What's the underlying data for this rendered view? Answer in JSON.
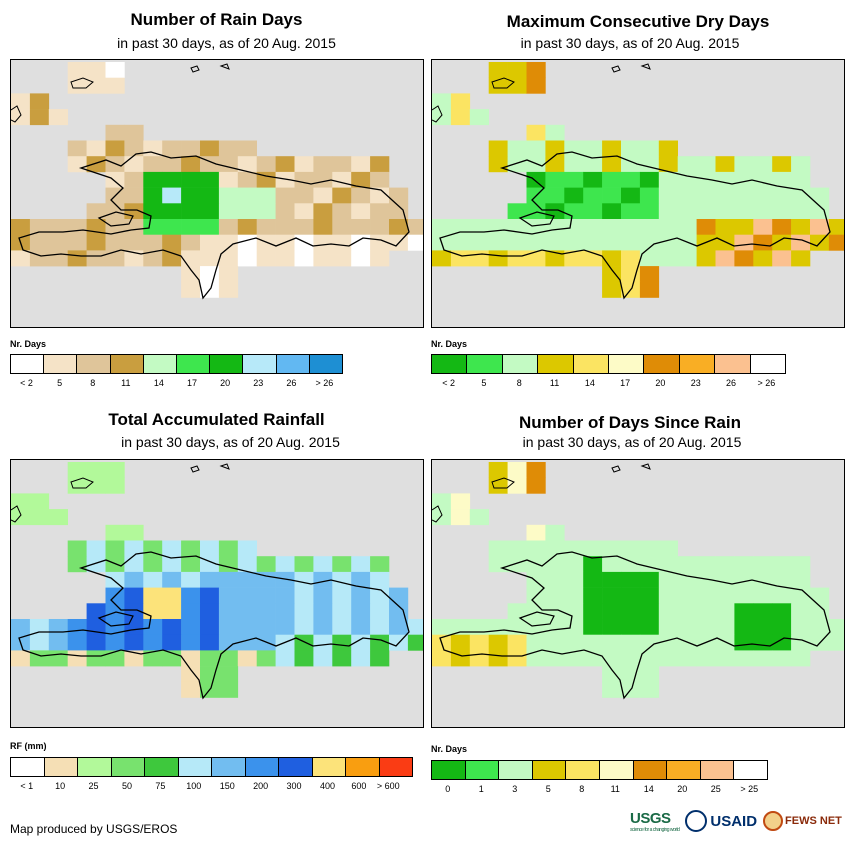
{
  "panels": [
    {
      "title": "Number of Rain Days",
      "subtitle": "in past 30 days, as of 20 Aug. 2015",
      "legend_title": "Nr. Days",
      "legend_colors": [
        "#ffffff",
        "#f5e3c7",
        "#dfc59a",
        "#c99e3f",
        "#c3fac3",
        "#3ee64e",
        "#14b814",
        "#b7e9f9",
        "#62b8f2",
        "#1e8fd3"
      ],
      "legend_labels": [
        "< 2",
        "5",
        "8",
        "11",
        "14",
        "17",
        "20",
        "23",
        "26",
        "> 26"
      ],
      "cells": [
        [
          1,
          0,
          0,
          0,
          0,
          0,
          0,
          0,
          0,
          0,
          0,
          0,
          0,
          0,
          0,
          0,
          0,
          0,
          0,
          0,
          0,
          0,
          0,
          0,
          0,
          0,
          0,
          0,
          0,
          0,
          0,
          0,
          0,
          0,
          0,
          0,
          0,
          0,
          0,
          0,
          0,
          0,
          0,
          0,
          0,
          0,
          0,
          0,
          0,
          0,
          0,
          0,
          0,
          0,
          0,
          0,
          0,
          0,
          0,
          0,
          0,
          0,
          0,
          0,
          0,
          0
        ],
        [
          0
        ]
      ]
    },
    {
      "title": "Maximum Consecutive Dry Days",
      "subtitle": "in past 30 days, as of 20 Aug. 2015",
      "legend_title": "Nr. Days",
      "legend_colors": [
        "#14b814",
        "#3ee64e",
        "#c3fac3",
        "#dcc800",
        "#fbe462",
        "#fdfbc7",
        "#df8c06",
        "#f9ae24",
        "#fbc190",
        "#ffffff"
      ],
      "legend_labels": [
        "< 2",
        "5",
        "8",
        "11",
        "14",
        "17",
        "20",
        "23",
        "26",
        "> 26"
      ]
    },
    {
      "title": "Total Accumulated Rainfall",
      "subtitle": "in past 30 days, as of 20 Aug. 2015",
      "legend_title": "RF (mm)",
      "legend_colors": [
        "#ffffff",
        "#f5dfb5",
        "#b2f99a",
        "#78e26e",
        "#3ec83d",
        "#b6e9f8",
        "#72bdf0",
        "#3b92ec",
        "#1f5fe0",
        "#fce37a",
        "#f99e10",
        "#fa3c14"
      ],
      "legend_labels": [
        "< 1",
        "10",
        "25",
        "50",
        "75",
        "100",
        "150",
        "200",
        "300",
        "400",
        "600",
        "> 600"
      ]
    },
    {
      "title": "Number of Days Since Rain",
      "subtitle": "in past 30 days, as of 20 Aug. 2015",
      "legend_title": "Nr. Days",
      "legend_colors": [
        "#14b814",
        "#3ee64e",
        "#c3fac3",
        "#dcc800",
        "#fbe462",
        "#fdfbc7",
        "#df8c06",
        "#f9ae24",
        "#fbc190",
        "#ffffff"
      ],
      "legend_labels": [
        "0",
        "1",
        "3",
        "5",
        "8",
        "11",
        "14",
        "20",
        "25",
        "> 25"
      ]
    }
  ],
  "credit": "Map produced by USGS/EROS",
  "logos": {
    "usgs": "USGS",
    "usgs_tagline": "science for a changing world",
    "usaid": "USAID",
    "fews": "FEWS NET"
  }
}
